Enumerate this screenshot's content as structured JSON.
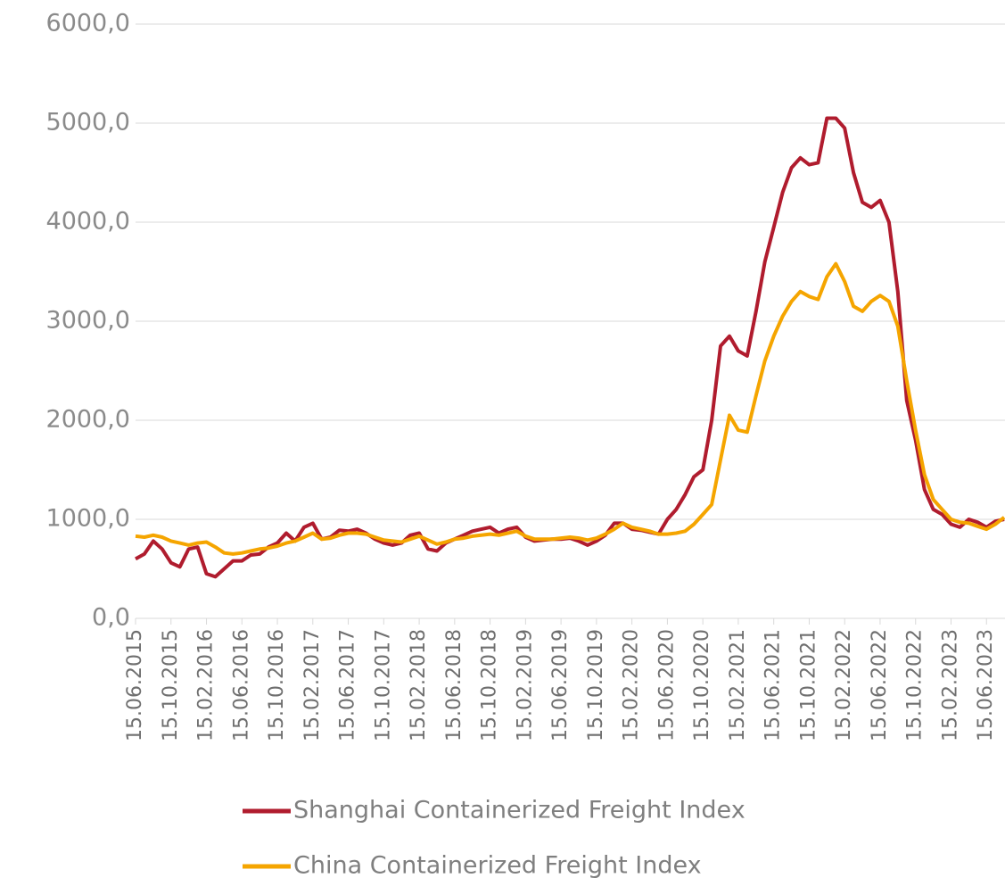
{
  "chart_data": {
    "type": "line",
    "categories": [
      "15.06.2015",
      null,
      null,
      null,
      "15.10.2015",
      null,
      null,
      null,
      "15.02.2016",
      null,
      null,
      null,
      "15.06.2016",
      null,
      null,
      null,
      "15.10.2016",
      null,
      null,
      null,
      "15.02.2017",
      null,
      null,
      null,
      "15.06.2017",
      null,
      null,
      null,
      "15.10.2017",
      null,
      null,
      null,
      "15.02.2018",
      null,
      null,
      null,
      "15.06.2018",
      null,
      null,
      null,
      "15.10.2018",
      null,
      null,
      null,
      "15.02.2019",
      null,
      null,
      null,
      "15.06.2019",
      null,
      null,
      null,
      "15.10.2019",
      null,
      null,
      null,
      "15.02.2020",
      null,
      null,
      null,
      "15.06.2020",
      null,
      null,
      null,
      "15.10.2020",
      null,
      null,
      null,
      "15.02.2021",
      null,
      null,
      null,
      "15.06.2021",
      null,
      null,
      null,
      "15.10.2021",
      null,
      null,
      null,
      "15.02.2022",
      null,
      null,
      null,
      "15.06.2022",
      null,
      null,
      null,
      "15.10.2022",
      null,
      null,
      null,
      "15.02.2023",
      null,
      null,
      null,
      "15.06.2023",
      null,
      null
    ],
    "series": [
      {
        "name": "Shanghai Containerized Freight Index",
        "color": "#b01c2e",
        "values": [
          600,
          650,
          780,
          700,
          560,
          520,
          700,
          720,
          450,
          420,
          500,
          580,
          580,
          640,
          650,
          720,
          760,
          860,
          780,
          920,
          960,
          800,
          820,
          890,
          880,
          900,
          860,
          800,
          760,
          740,
          760,
          840,
          860,
          700,
          680,
          760,
          800,
          840,
          880,
          900,
          920,
          860,
          900,
          920,
          820,
          780,
          790,
          800,
          800,
          810,
          780,
          740,
          780,
          840,
          960,
          960,
          900,
          890,
          870,
          850,
          1000,
          1100,
          1250,
          1430,
          1500,
          2000,
          2750,
          2850,
          2700,
          2650,
          3100,
          3600,
          3950,
          4300,
          4550,
          4650,
          4580,
          4600,
          5050,
          5050,
          4950,
          4500,
          4200,
          4150,
          4220,
          4000,
          3300,
          2200,
          1800,
          1300,
          1100,
          1050,
          950,
          920,
          1000,
          970,
          920,
          980,
          1000
        ]
      },
      {
        "name": "China Containerized Freight Index",
        "color": "#f5a500",
        "values": [
          830,
          820,
          840,
          820,
          780,
          760,
          740,
          760,
          770,
          720,
          660,
          650,
          660,
          680,
          700,
          710,
          730,
          760,
          780,
          820,
          860,
          800,
          810,
          840,
          860,
          860,
          850,
          820,
          790,
          780,
          770,
          800,
          830,
          790,
          750,
          770,
          800,
          810,
          830,
          840,
          850,
          840,
          860,
          880,
          830,
          800,
          800,
          800,
          810,
          820,
          810,
          790,
          810,
          850,
          900,
          960,
          920,
          900,
          880,
          850,
          850,
          860,
          880,
          950,
          1050,
          1150,
          1600,
          2050,
          1900,
          1880,
          2250,
          2600,
          2850,
          3050,
          3200,
          3300,
          3250,
          3220,
          3450,
          3580,
          3400,
          3150,
          3100,
          3200,
          3260,
          3200,
          2950,
          2400,
          1900,
          1450,
          1200,
          1100,
          1000,
          970,
          960,
          930,
          900,
          950,
          1020
        ]
      }
    ],
    "ylim": [
      0,
      6000
    ],
    "yticks": [
      {
        "value": 0,
        "label": "0,0"
      },
      {
        "value": 1000,
        "label": "1000,0"
      },
      {
        "value": 2000,
        "label": "2000,0"
      },
      {
        "value": 3000,
        "label": "3000,0"
      },
      {
        "value": 4000,
        "label": "4000,0"
      },
      {
        "value": 5000,
        "label": "5000,0"
      },
      {
        "value": 6000,
        "label": "6000,0"
      }
    ],
    "grid": true,
    "legend": "bottom"
  }
}
